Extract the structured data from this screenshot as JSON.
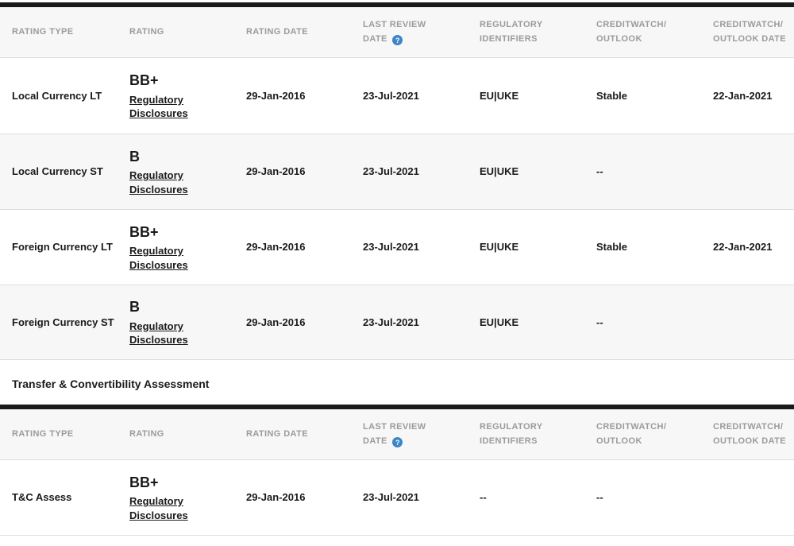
{
  "colors": {
    "table_top_border": "#1a1a1a",
    "header_background": "#f7f7f7",
    "header_text": "#9b9b9b",
    "row_alternate_background": "#f7f7f7",
    "row_separator": "#dddddd",
    "body_text": "#1a1a1a",
    "info_icon_background": "#3d85c6"
  },
  "header": {
    "info_icon_glyph": "?",
    "columns": [
      {
        "line1": "RATING TYPE",
        "line2": ""
      },
      {
        "line1": "RATING",
        "line2": ""
      },
      {
        "line1": "RATING DATE",
        "line2": ""
      },
      {
        "line1": "LAST REVIEW",
        "line2": "DATE"
      },
      {
        "line1": "REGULATORY",
        "line2": "IDENTIFIERS"
      },
      {
        "line1": "CREDITWATCH/",
        "line2": "OUTLOOK"
      },
      {
        "line1": "CREDITWATCH/",
        "line2": "OUTLOOK DATE"
      }
    ]
  },
  "table1": {
    "rows": [
      {
        "rating_type": "Local Currency LT",
        "rating": "BB+",
        "disclosure_link": "Regulatory Disclosures",
        "rating_date": "29-Jan-2016",
        "last_review_date": "23-Jul-2021",
        "regulatory_identifiers": "EU|UKE",
        "creditwatch_outlook": "Stable",
        "creditwatch_outlook_date": "22-Jan-2021"
      },
      {
        "rating_type": "Local Currency ST",
        "rating": "B",
        "disclosure_link": "Regulatory Disclosures",
        "rating_date": "29-Jan-2016",
        "last_review_date": "23-Jul-2021",
        "regulatory_identifiers": "EU|UKE",
        "creditwatch_outlook": "--",
        "creditwatch_outlook_date": ""
      },
      {
        "rating_type": "Foreign Currency LT",
        "rating": "BB+",
        "disclosure_link": "Regulatory Disclosures",
        "rating_date": "29-Jan-2016",
        "last_review_date": "23-Jul-2021",
        "regulatory_identifiers": "EU|UKE",
        "creditwatch_outlook": "Stable",
        "creditwatch_outlook_date": "22-Jan-2021"
      },
      {
        "rating_type": "Foreign Currency ST",
        "rating": "B",
        "disclosure_link": "Regulatory Disclosures",
        "rating_date": "29-Jan-2016",
        "last_review_date": "23-Jul-2021",
        "regulatory_identifiers": "EU|UKE",
        "creditwatch_outlook": "--",
        "creditwatch_outlook_date": ""
      }
    ]
  },
  "section": {
    "title": "Transfer & Convertibility Assessment"
  },
  "table2": {
    "rows": [
      {
        "rating_type": "T&C Assess",
        "rating": "BB+",
        "disclosure_link": "Regulatory Disclosures",
        "rating_date": "29-Jan-2016",
        "last_review_date": "23-Jul-2021",
        "regulatory_identifiers": "--",
        "creditwatch_outlook": "--",
        "creditwatch_outlook_date": ""
      }
    ]
  }
}
